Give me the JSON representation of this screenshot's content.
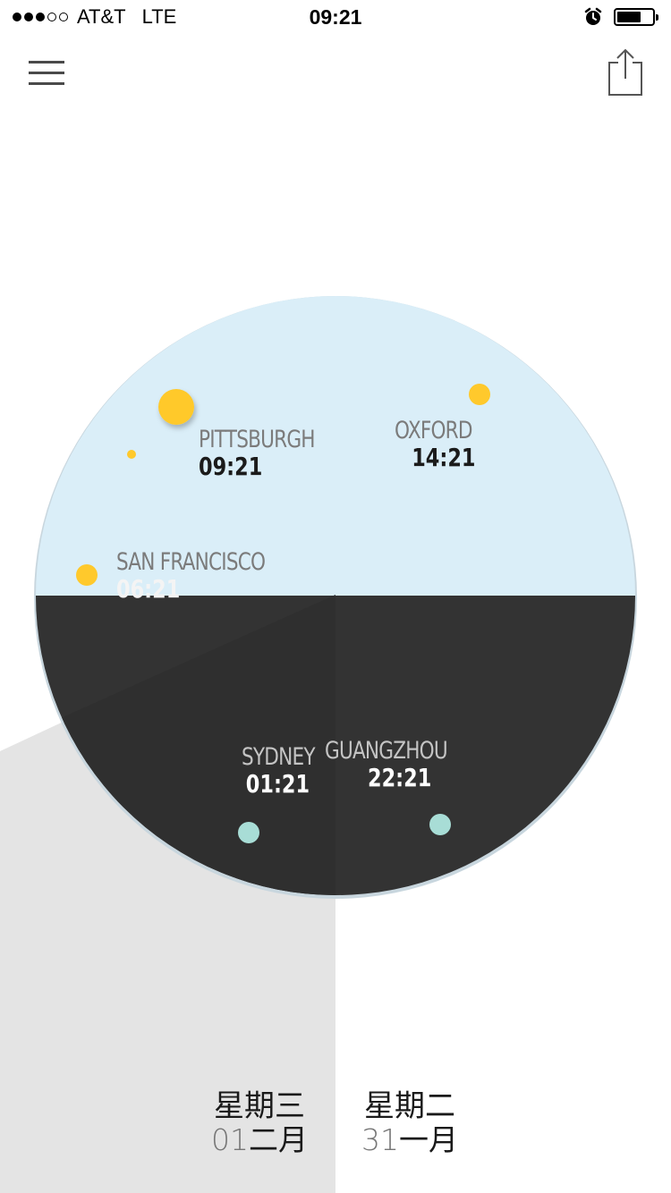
{
  "status_bar": {
    "carrier": "AT&T",
    "network": "LTE",
    "time": "09:21",
    "signal_bars_filled": 3,
    "signal_bars_total": 5,
    "alarm_icon": "alarm-clock-icon",
    "battery_level": 0.6
  },
  "toolbar": {
    "menu_icon": "hamburger-menu-icon",
    "share_icon": "share-icon"
  },
  "colors": {
    "day_sky": "#daeef8",
    "night": "#333333",
    "sun": "#ffc92c",
    "moon": "#a8ddd6",
    "gray_zone": "#e4e4e4"
  },
  "cities": [
    {
      "name": "PITTSBURGH",
      "time": "09:21"
    },
    {
      "name": "OXFORD",
      "time": "14:21"
    },
    {
      "name": "SAN FRANCISCO",
      "time": "06:21"
    },
    {
      "name": "SYDNEY",
      "time": "01:21"
    },
    {
      "name": "GUANGZHOU",
      "time": "22:21"
    }
  ],
  "days": [
    {
      "weekday": "星期三",
      "day": "01",
      "month": "二月"
    },
    {
      "weekday": "星期二",
      "day": "31",
      "month": "一月"
    }
  ]
}
